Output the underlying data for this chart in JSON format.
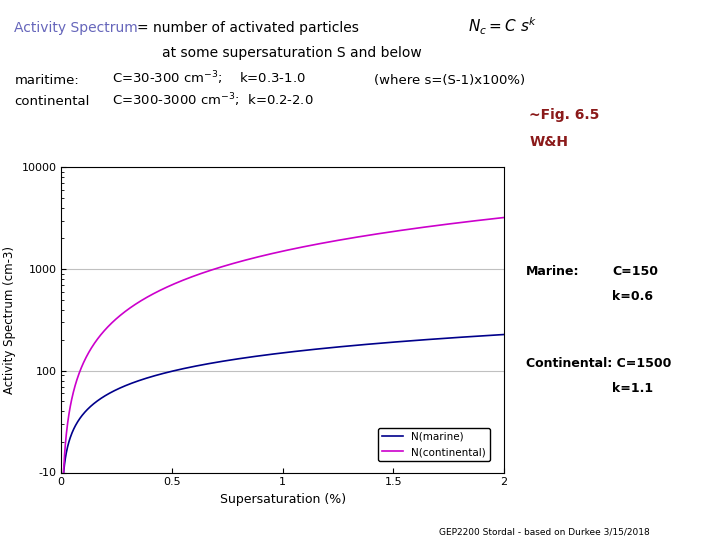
{
  "marine_C": 150,
  "marine_k": 0.6,
  "continental_C": 1500,
  "continental_k": 1.1,
  "x_min": 0.0,
  "x_max": 2.0,
  "y_min": 10,
  "y_max": 10000,
  "xlabel": "Supersaturation (%)",
  "ylabel": "Activity Spectrum (cm-3)",
  "marine_color": "#00008B",
  "continental_color": "#CC00CC",
  "marine_label": "N(marine)",
  "continental_curve_label": "N(continental)",
  "footer": "GEP2200 Stordal - based on Durkee 3/15/2018",
  "title_color": "#6666BB",
  "fig_ref_color": "#8B1A1A",
  "annotation_color": "#000000",
  "grid_color": "#C0C0C0",
  "background_color": "#FFFFFF"
}
